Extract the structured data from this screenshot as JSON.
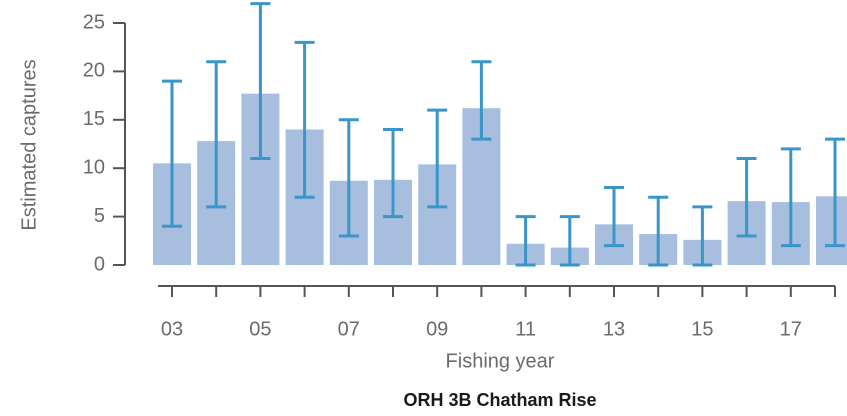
{
  "chart_data": {
    "type": "bar",
    "title": "ORH 3B Chatham Rise",
    "x_label": "Fishing year",
    "y_label": "Estimated captures",
    "categories": [
      "03",
      null,
      "05",
      null,
      "07",
      null,
      "09",
      null,
      "11",
      null,
      "13",
      null,
      "15",
      null,
      "17",
      null
    ],
    "values": [
      10.5,
      12.8,
      17.7,
      14.0,
      8.7,
      8.8,
      10.4,
      16.2,
      2.2,
      1.8,
      4.2,
      3.2,
      2.6,
      6.6,
      6.5,
      7.1
    ],
    "lower": [
      4,
      6,
      11,
      7,
      3,
      5,
      6,
      13,
      0,
      0,
      2,
      0,
      0,
      3,
      2,
      2
    ],
    "upper": [
      19,
      21,
      27,
      23,
      15,
      14,
      16,
      21,
      5,
      5,
      8,
      7,
      6,
      11,
      12,
      13
    ],
    "color": "#a8bedf",
    "error_color": "#3a95c8",
    "ylim": [
      0,
      25
    ],
    "yticks": [
      0,
      5,
      10,
      15,
      20,
      25
    ],
    "grid": false
  }
}
